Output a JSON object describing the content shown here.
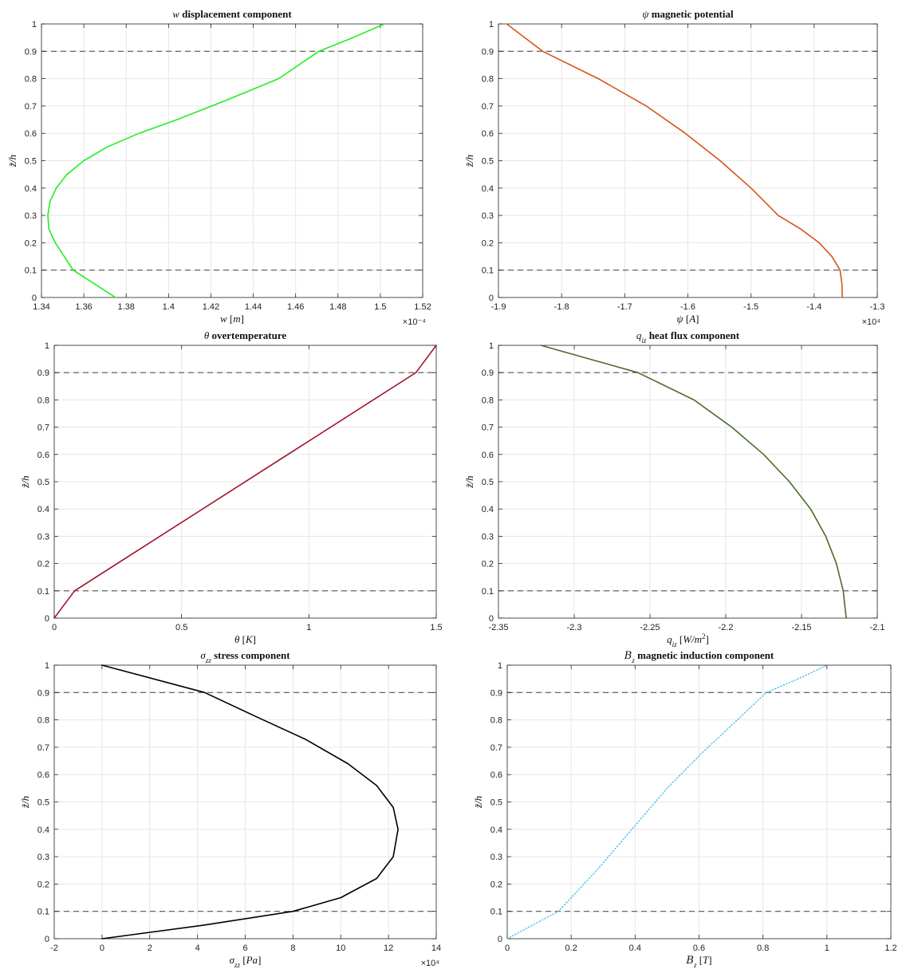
{
  "chart_data": [
    {
      "type": "line",
      "title": [
        {
          "t": "w",
          "i": true
        },
        {
          "t": " displacement component"
        }
      ],
      "xlabel": [
        {
          "t": "w",
          "i": true
        },
        {
          "t": " ["
        },
        {
          "t": "m",
          "i": true
        },
        {
          "t": "]"
        }
      ],
      "ylabel": "z̃/h",
      "x_multiplier": "×10⁻⁴",
      "xlim": [
        1.34,
        1.52
      ],
      "xticks": [
        1.34,
        1.36,
        1.38,
        1.4,
        1.42,
        1.44,
        1.46,
        1.48,
        1.5,
        1.52
      ],
      "xticklabels": [
        "1.34",
        "1.36",
        "1.38",
        "1.4",
        "1.42",
        "1.44",
        "1.46",
        "1.48",
        "1.5",
        "1.52"
      ],
      "ylim": [
        0,
        1
      ],
      "grid": true,
      "hlines": [
        0.1,
        0.9
      ],
      "series": [
        {
          "color": "#22ee22",
          "dash": "",
          "x": [
            1.375,
            1.355,
            1.3465,
            1.3435,
            1.343,
            1.344,
            1.347,
            1.352,
            1.36,
            1.371,
            1.386,
            1.404,
            1.427,
            1.452,
            1.471,
            1.487,
            1.502
          ],
          "y": [
            0.0,
            0.1,
            0.2,
            0.25,
            0.3,
            0.35,
            0.4,
            0.45,
            0.5,
            0.55,
            0.6,
            0.65,
            0.72,
            0.8,
            0.9,
            0.95,
            1.0
          ]
        }
      ]
    },
    {
      "type": "line",
      "title": [
        {
          "t": "ψ",
          "i": true
        },
        {
          "t": " magnetic potential"
        }
      ],
      "xlabel": [
        {
          "t": "ψ",
          "i": true
        },
        {
          "t": " ["
        },
        {
          "t": "A",
          "i": true
        },
        {
          "t": "]"
        }
      ],
      "ylabel": "z̃/h",
      "x_multiplier": "×10⁴",
      "xlim": [
        -1.9,
        -1.3
      ],
      "xticks": [
        -1.9,
        -1.8,
        -1.7,
        -1.6,
        -1.5,
        -1.4,
        -1.3
      ],
      "xticklabels": [
        "-1.9",
        "-1.8",
        "-1.7",
        "-1.6",
        "-1.5",
        "-1.4",
        "-1.3"
      ],
      "ylim": [
        0,
        1
      ],
      "grid": true,
      "hlines": [
        0.1,
        0.9
      ],
      "series": [
        {
          "color": "#d95319",
          "dash": "",
          "x": [
            -1.3555,
            -1.356,
            -1.359,
            -1.372,
            -1.392,
            -1.421,
            -1.457,
            -1.5,
            -1.549,
            -1.604,
            -1.666,
            -1.742,
            -1.83,
            -1.887
          ],
          "y": [
            0.0,
            0.05,
            0.1,
            0.15,
            0.2,
            0.25,
            0.3,
            0.4,
            0.5,
            0.6,
            0.7,
            0.8,
            0.9,
            1.0
          ]
        }
      ]
    },
    {
      "type": "line",
      "title": [
        {
          "t": "θ",
          "i": true
        },
        {
          "t": " overtemperature"
        }
      ],
      "xlabel": [
        {
          "t": "θ",
          "i": true
        },
        {
          "t": " ["
        },
        {
          "t": "K",
          "i": true
        },
        {
          "t": "]"
        }
      ],
      "ylabel": "z̃/h",
      "x_multiplier": "",
      "xlim": [
        0,
        1.5
      ],
      "xticks": [
        0,
        0.5,
        1,
        1.5
      ],
      "xticklabels": [
        "0",
        "0.5",
        "1",
        "1.5"
      ],
      "ylim": [
        0,
        1
      ],
      "grid": true,
      "hlines": [
        0.1,
        0.9
      ],
      "series": [
        {
          "color": "#a2142f",
          "dash": "",
          "x": [
            0.0,
            0.08,
            1.42,
            1.5
          ],
          "y": [
            0.0,
            0.1,
            0.9,
            1.0
          ]
        }
      ]
    },
    {
      "type": "line",
      "title": [
        {
          "t": "q",
          "i": true
        },
        {
          "t": "iz",
          "i": true,
          "sub": true
        },
        {
          "t": " heat flux component"
        }
      ],
      "xlabel": [
        {
          "t": "q",
          "i": true
        },
        {
          "t": "iz",
          "i": true,
          "sub": true
        },
        {
          "t": " ["
        },
        {
          "t": "W/m",
          "i": true
        },
        {
          "t": "2",
          "sup": true
        },
        {
          "t": "]"
        }
      ],
      "ylabel": "z̃/h",
      "x_multiplier": "",
      "xlim": [
        -2.35,
        -2.1
      ],
      "xticks": [
        -2.35,
        -2.3,
        -2.25,
        -2.2,
        -2.15,
        -2.1
      ],
      "xticklabels": [
        "-2.35",
        "-2.3",
        "-2.25",
        "-2.2",
        "-2.15",
        "-2.1"
      ],
      "ylim": [
        0,
        1
      ],
      "grid": true,
      "hlines": [
        0.1,
        0.9
      ],
      "series": [
        {
          "color": "#4d6b2a",
          "dash": "",
          "x": [
            -2.1205,
            -2.1215,
            -2.1225,
            -2.127,
            -2.134,
            -2.144,
            -2.158,
            -2.175,
            -2.196,
            -2.221,
            -2.258,
            -2.29,
            -2.322
          ],
          "y": [
            0.0,
            0.05,
            0.1,
            0.2,
            0.3,
            0.4,
            0.5,
            0.6,
            0.7,
            0.8,
            0.9,
            0.95,
            1.0
          ]
        }
      ]
    },
    {
      "type": "line",
      "title": [
        {
          "t": "σ",
          "i": true
        },
        {
          "t": "zz",
          "i": true,
          "sub": true
        },
        {
          "t": " stress component"
        }
      ],
      "xlabel": [
        {
          "t": "σ",
          "i": true
        },
        {
          "t": "zz",
          "i": true,
          "sub": true
        },
        {
          "t": " ["
        },
        {
          "t": "Pa",
          "i": true
        },
        {
          "t": "]"
        }
      ],
      "ylabel": "z̃/h",
      "x_multiplier": "×10⁴",
      "xlim": [
        -2,
        14
      ],
      "xticks": [
        -2,
        0,
        2,
        4,
        6,
        8,
        10,
        12,
        14
      ],
      "xticklabels": [
        "-2",
        "0",
        "2",
        "4",
        "6",
        "8",
        "10",
        "12",
        "14"
      ],
      "ylim": [
        0,
        1
      ],
      "grid": true,
      "hlines": [
        0.1,
        0.9
      ],
      "series": [
        {
          "color": "#000000",
          "dash": "",
          "x": [
            0.0,
            4.3,
            8.0,
            10.0,
            11.5,
            12.2,
            12.4,
            12.2,
            11.5,
            10.3,
            8.5,
            6.5,
            4.3,
            0.0
          ],
          "y": [
            0.0,
            0.05,
            0.1,
            0.15,
            0.22,
            0.3,
            0.4,
            0.48,
            0.56,
            0.64,
            0.73,
            0.81,
            0.9,
            1.0
          ]
        }
      ]
    },
    {
      "type": "line",
      "title": [
        {
          "t": "B",
          "i": true,
          "cal": true
        },
        {
          "t": "z",
          "i": true,
          "sub": true
        },
        {
          "t": " magnetic induction component"
        }
      ],
      "xlabel": [
        {
          "t": "B",
          "i": true,
          "cal": true
        },
        {
          "t": "z",
          "i": true,
          "sub": true
        },
        {
          "t": " ["
        },
        {
          "t": "T",
          "i": true
        },
        {
          "t": "]"
        }
      ],
      "ylabel": "z̃/h",
      "x_multiplier": "",
      "xlim": [
        0,
        1.2
      ],
      "xticks": [
        0,
        0.2,
        0.4,
        0.6,
        0.8,
        1.0,
        1.2
      ],
      "xticklabels": [
        "0",
        "0.2",
        "0.4",
        "0.6",
        "0.8",
        "1",
        "1.2"
      ],
      "ylim": [
        0,
        1
      ],
      "grid": true,
      "hlines": [
        0.1,
        0.9
      ],
      "series": [
        {
          "color": "#4dbeee",
          "dash": "1.2 2.6",
          "x": [
            0.0,
            0.08,
            0.16,
            0.28,
            0.39,
            0.5,
            0.61,
            0.72,
            0.81,
            0.91,
            1.0
          ],
          "y": [
            0.0,
            0.05,
            0.1,
            0.25,
            0.4,
            0.55,
            0.68,
            0.8,
            0.9,
            0.95,
            1.0
          ]
        }
      ]
    }
  ]
}
